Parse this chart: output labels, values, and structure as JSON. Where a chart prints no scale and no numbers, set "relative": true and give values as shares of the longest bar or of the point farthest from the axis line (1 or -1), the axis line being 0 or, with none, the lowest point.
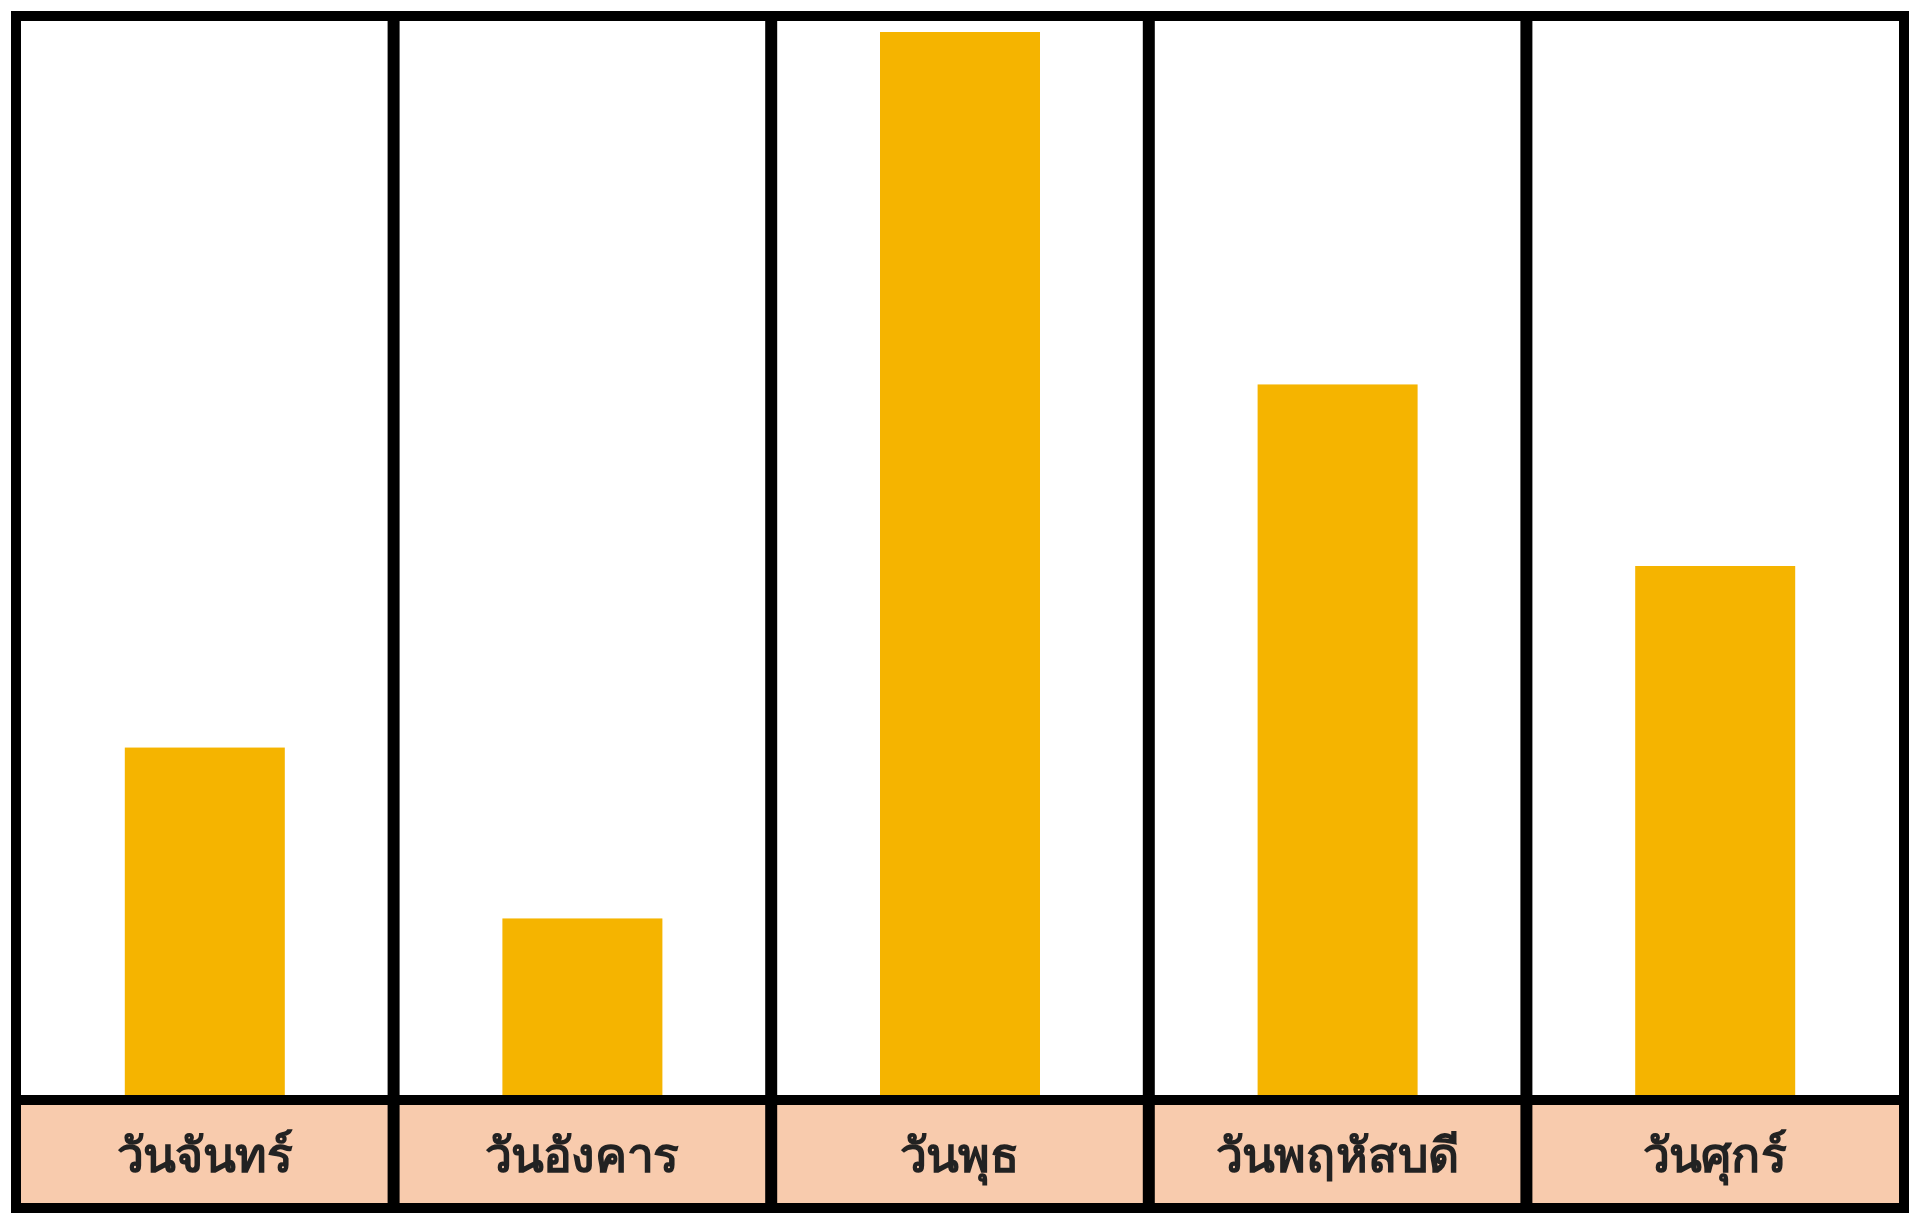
{
  "chart_data": {
    "type": "bar",
    "relative": true,
    "categories": [
      "วันจันทร์",
      "วันอังคาร",
      "วันพุธ",
      "วันพฤหัสบดี",
      "วันศุกร์"
    ],
    "values": [
      0.33,
      0.17,
      1,
      0.67,
      0.5
    ],
    "color": "#f5b400"
  }
}
